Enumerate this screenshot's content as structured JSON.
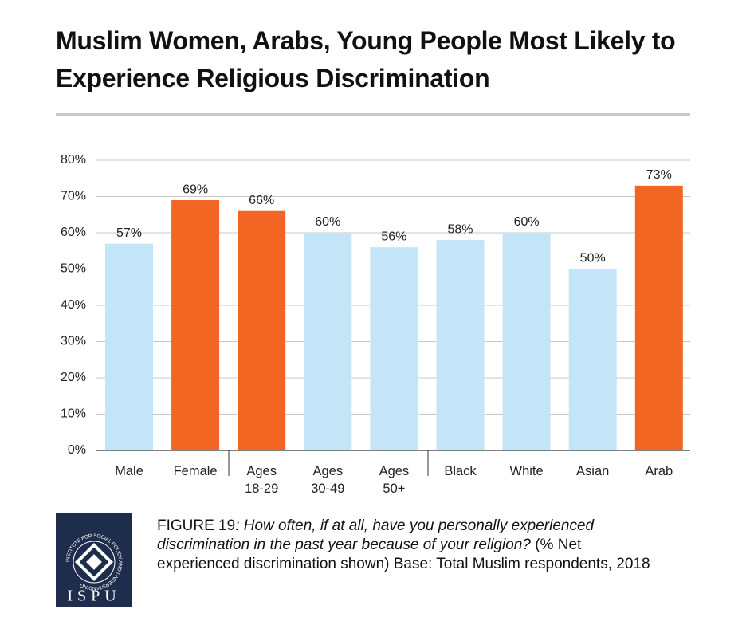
{
  "chart_data": {
    "type": "bar",
    "title": "Muslim Women, Arabs, Young People Most Likely to Experience Religious Discrimination",
    "categories": [
      "Male",
      "Female",
      "Ages 18-29",
      "Ages 30-49",
      "Ages 50+",
      "Black",
      "White",
      "Asian",
      "Arab"
    ],
    "values": [
      57,
      69,
      66,
      60,
      56,
      58,
      60,
      50,
      73
    ],
    "value_labels": [
      "57%",
      "69%",
      "66%",
      "60%",
      "56%",
      "58%",
      "60%",
      "50%",
      "73%"
    ],
    "colors": [
      "#c4e4f7",
      "#f26522",
      "#f26522",
      "#c4e4f7",
      "#c4e4f7",
      "#c4e4f7",
      "#c4e4f7",
      "#c4e4f7",
      "#f26522"
    ],
    "ylim": [
      0,
      80
    ],
    "yticks": [
      {
        "value": 0,
        "label": "0%"
      },
      {
        "value": 10,
        "label": "10%"
      },
      {
        "value": 20,
        "label": "20%"
      },
      {
        "value": 30,
        "label": "30%"
      },
      {
        "value": 40,
        "label": "40%"
      },
      {
        "value": 50,
        "label": "50%"
      },
      {
        "value": 60,
        "label": "60%"
      },
      {
        "value": 70,
        "label": "70%"
      },
      {
        "value": 80,
        "label": "80%"
      }
    ],
    "grid": true,
    "caption": {
      "figure": "FIGURE 19",
      "question": ": How often, if at all, have you personally experienced discrimination in the past year because of your religion?",
      "note": " (% Net experienced discrimination shown) Base: Total Muslim respondents, 2018"
    },
    "logo": {
      "name": "ISPU",
      "ring": "INSTITUTE FOR SOCIAL POLICY AND UNDERSTANDING"
    }
  }
}
